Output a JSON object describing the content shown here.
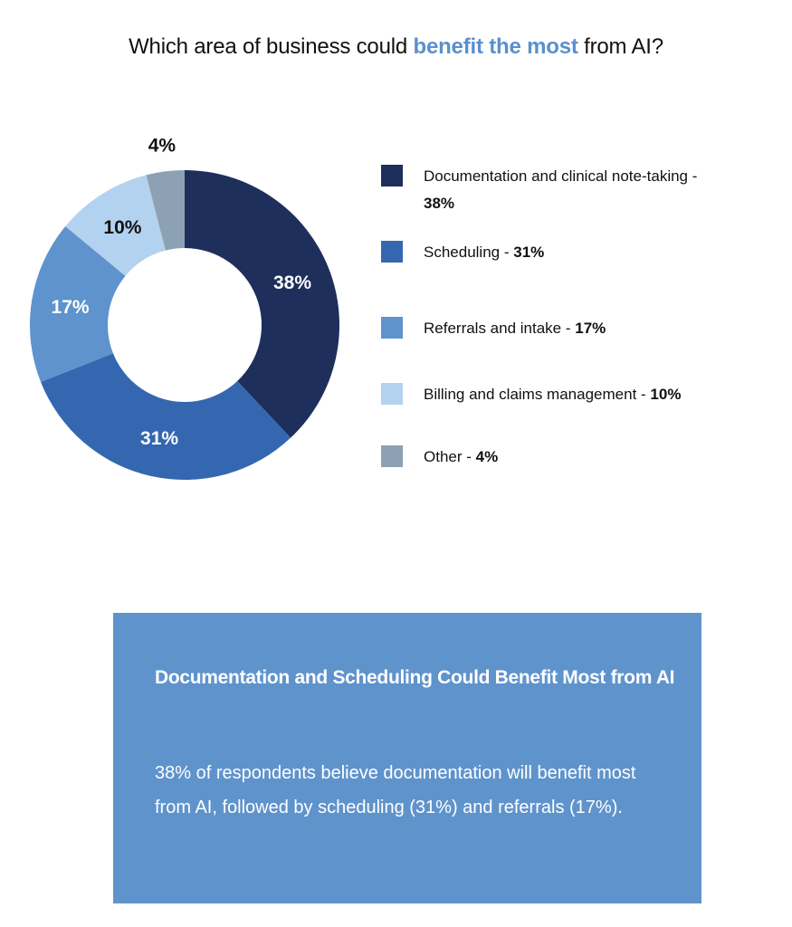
{
  "title": {
    "prefix": "Which area of business could ",
    "highlight": "benefit the most",
    "suffix": " from AI?"
  },
  "chart_data": {
    "type": "pie",
    "variant": "donut",
    "title": "Which area of business could benefit the most from AI?",
    "categories": [
      "Documentation and clinical note-taking",
      "Scheduling",
      "Referrals and intake",
      "Billing and claims management",
      "Other"
    ],
    "values": [
      38,
      31,
      17,
      10,
      4
    ],
    "labels": [
      "38%",
      "31%",
      "17%",
      "10%",
      "4%"
    ],
    "colors": [
      "#1d2f5a",
      "#3567b1",
      "#5e93cd",
      "#b3d2ef",
      "#8da1b4"
    ],
    "label_colors": [
      "#ffffff",
      "#ffffff",
      "#ffffff",
      "#111111",
      "#111111"
    ],
    "legend_placement": "right"
  },
  "legend": [
    {
      "text": "Documentation and clinical note-taking - ",
      "value": "38%"
    },
    {
      "text": "Scheduling - ",
      "value": "31%"
    },
    {
      "text": "Referrals and intake - ",
      "value": "17%"
    },
    {
      "text": "Billing and claims management - ",
      "value": "10%"
    },
    {
      "text": "Other - ",
      "value": "4%"
    }
  ],
  "callout": {
    "heading": "Documentation and Scheduling Could Benefit Most from AI",
    "body": "38% of respondents believe documentation will benefit most from AI, followed by scheduling (31%) and referrals (17%)."
  }
}
